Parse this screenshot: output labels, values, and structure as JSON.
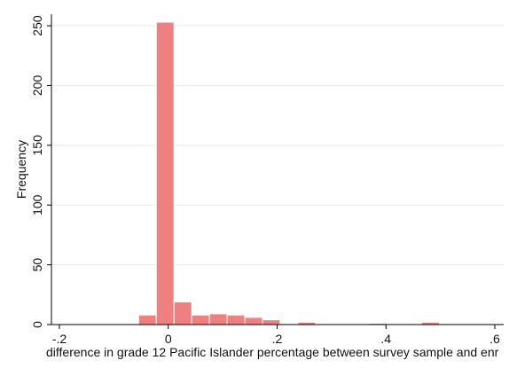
{
  "chart_data": {
    "type": "bar",
    "subtype": "histogram",
    "title": "",
    "xlabel": "difference in grade 12 Pacific Islander percentage between survey sample and enr",
    "ylabel": "Frequency",
    "xlim": [
      -0.2,
      0.6
    ],
    "ylim": [
      0,
      260
    ],
    "x_ticks": [
      -0.2,
      0,
      0.2,
      0.4,
      0.6
    ],
    "x_tick_labels": [
      "-.2",
      "0",
      ".2",
      ".4",
      ".6"
    ],
    "y_ticks": [
      0,
      50,
      100,
      150,
      200,
      250
    ],
    "y_tick_labels": [
      "0",
      "50",
      "100",
      "150",
      "200",
      "250"
    ],
    "grid": "horizontal",
    "bin_width": 0.0325,
    "bins": [
      {
        "x0": -0.0545,
        "x1": -0.022,
        "count": 8
      },
      {
        "x0": -0.022,
        "x1": 0.0105,
        "count": 253
      },
      {
        "x0": 0.0105,
        "x1": 0.043,
        "count": 19
      },
      {
        "x0": 0.043,
        "x1": 0.0755,
        "count": 8
      },
      {
        "x0": 0.0755,
        "x1": 0.108,
        "count": 9
      },
      {
        "x0": 0.108,
        "x1": 0.1405,
        "count": 8
      },
      {
        "x0": 0.1405,
        "x1": 0.173,
        "count": 6
      },
      {
        "x0": 0.173,
        "x1": 0.2055,
        "count": 4
      },
      {
        "x0": 0.2055,
        "x1": 0.238,
        "count": 0
      },
      {
        "x0": 0.238,
        "x1": 0.2705,
        "count": 2
      },
      {
        "x0": 0.2705,
        "x1": 0.303,
        "count": 0
      },
      {
        "x0": 0.303,
        "x1": 0.3355,
        "count": 0
      },
      {
        "x0": 0.3355,
        "x1": 0.368,
        "count": 0
      },
      {
        "x0": 0.368,
        "x1": 0.4005,
        "count": 1
      },
      {
        "x0": 0.4005,
        "x1": 0.433,
        "count": 0
      },
      {
        "x0": 0.433,
        "x1": 0.4655,
        "count": 0
      },
      {
        "x0": 0.4655,
        "x1": 0.498,
        "count": 2
      }
    ],
    "colors": {
      "bar_fill": "#f08080",
      "bar_stroke": "#ffffff",
      "axis": "#000000",
      "grid": "#eaeaea"
    }
  }
}
